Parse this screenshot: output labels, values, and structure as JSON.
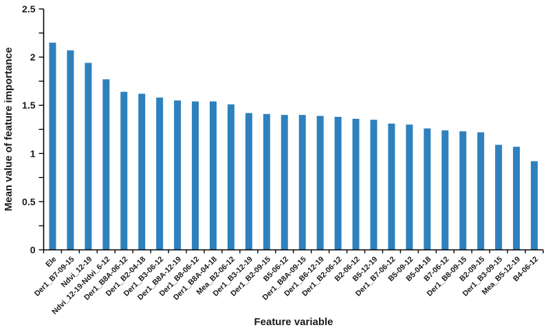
{
  "figure": {
    "background": "#ffffff"
  },
  "chart_data": {
    "type": "bar",
    "title": "",
    "xlabel": "Feature variable",
    "ylabel": "Mean value of feature importance",
    "categories": [
      "Ele",
      "Der1_B7-09-15",
      "Ndvi_12-19",
      "Ndvi_12-19-Ndvi_6-12",
      "Der1_B8A-06-12",
      "Der1_B2-04-18",
      "Der1_B3-06-12",
      "Der1_B8A-12-19",
      "Der1_B8-06-12",
      "Der1_B8A-04-18",
      "Mea_B2-06-12",
      "Der1_B3-12-19",
      "Der1_B2-09-15",
      "B5-06-12",
      "Der1_B8A-09-15",
      "Der1_B6-12-19",
      "Der1_B2-06-12",
      "B2-06-12",
      "B5-12-19",
      "Der1_B7-06-12",
      "B5-09-12",
      "B5-04-18",
      "B7-06-12",
      "Der1_B8-09-15",
      "B2-09-15",
      "Der1_B3-09-15",
      "Mea_B5-12-19",
      "B4-06-12"
    ],
    "values": [
      2.15,
      2.07,
      1.94,
      1.77,
      1.64,
      1.62,
      1.58,
      1.55,
      1.54,
      1.54,
      1.51,
      1.42,
      1.41,
      1.4,
      1.4,
      1.39,
      1.38,
      1.36,
      1.35,
      1.31,
      1.3,
      1.26,
      1.24,
      1.23,
      1.22,
      1.09,
      1.07,
      0.92
    ],
    "ylim": [
      0,
      2.5
    ],
    "ytick_major_step": 0.5,
    "ytick_minor_step": 0.25,
    "ytick_labels": [
      "0",
      "0.5",
      "1",
      "1.5",
      "2",
      "2.5"
    ],
    "xtick_label_rotation_deg": -45,
    "grid": false,
    "legend": "none",
    "bar_color": "#2E81BD",
    "axis_color": "#000000",
    "text_color": "#1a1a1a"
  }
}
